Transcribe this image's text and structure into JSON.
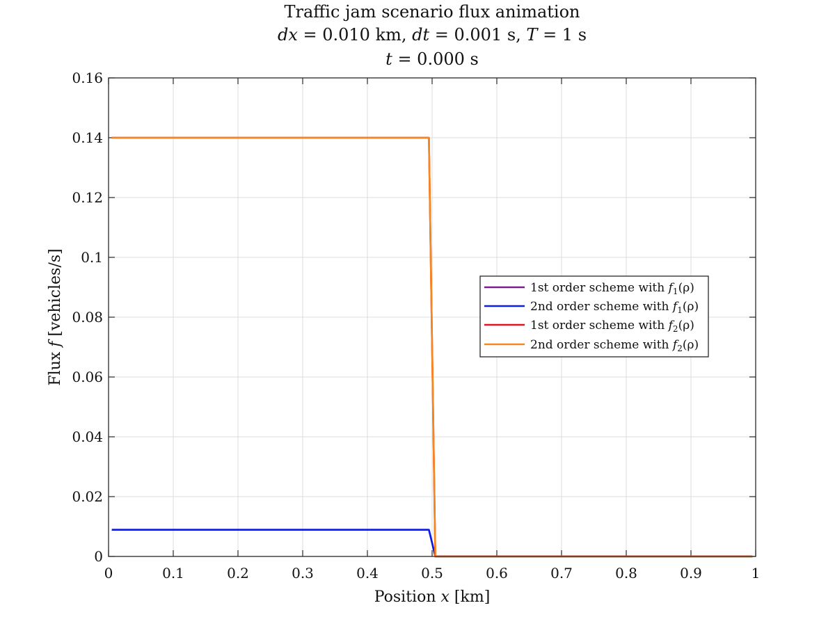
{
  "chart_data": {
    "type": "line",
    "title": "Traffic jam scenario flux animation",
    "subtitle": {
      "dx_symbol": "dx",
      "dx_value": " = 0.010 km, ",
      "dt_symbol": "dt",
      "dt_value": " = 0.001 s, ",
      "T_symbol": "T",
      "T_value": " = 1 s"
    },
    "time": {
      "symbol": "t",
      "value": " = 0.000 s"
    },
    "xlabel": {
      "prefix": "Position ",
      "symbol": "x",
      "suffix": " [km]"
    },
    "ylabel": {
      "prefix": "Flux ",
      "symbol": "f",
      "suffix": " [vehicles/s]"
    },
    "xlim": [
      0,
      1
    ],
    "ylim": [
      0,
      0.16
    ],
    "xticks": [
      "0",
      "0.1",
      "0.2",
      "0.3",
      "0.4",
      "0.5",
      "0.6",
      "0.7",
      "0.8",
      "0.9",
      "1"
    ],
    "yticks": [
      "0",
      "0.02",
      "0.04",
      "0.06",
      "0.08",
      "0.1",
      "0.12",
      "0.14",
      "0.16"
    ],
    "grid": true,
    "legend_position": "center-right",
    "series": [
      {
        "name": "1st order scheme with f1(ρ)",
        "legend_prefix": "1st order scheme with ",
        "legend_fn": "f",
        "legend_sub": "1",
        "legend_arg": "(ρ)",
        "color": "#7e1e8e",
        "x": [
          0.005,
          0.495,
          0.5,
          0.505,
          0.995
        ],
        "y": [
          0.0089,
          0.0089,
          0.0045,
          0,
          0
        ]
      },
      {
        "name": "2nd order scheme with f1(ρ)",
        "legend_prefix": "2nd order scheme with ",
        "legend_fn": "f",
        "legend_sub": "1",
        "legend_arg": "(ρ)",
        "color": "#0a1ee8",
        "x": [
          0.005,
          0.495,
          0.5,
          0.505,
          0.995
        ],
        "y": [
          0.0089,
          0.0089,
          0.0045,
          0,
          0
        ]
      },
      {
        "name": "1st order scheme with f2(ρ)",
        "legend_prefix": "1st order scheme with ",
        "legend_fn": "f",
        "legend_sub": "2",
        "legend_arg": "(ρ)",
        "color": "#e3111b",
        "x": [
          0.005,
          0.495,
          0.505,
          0.995
        ],
        "y": [
          0.14,
          0.14,
          0,
          0
        ]
      },
      {
        "name": "2nd order scheme with f2(ρ)",
        "legend_prefix": "2nd order scheme with ",
        "legend_fn": "f",
        "legend_sub": "2",
        "legend_arg": "(ρ)",
        "color": "#f5871f",
        "x": [
          0.005,
          0.495,
          0.505,
          0.995
        ],
        "y": [
          0.14,
          0.14,
          0,
          0
        ]
      }
    ]
  }
}
